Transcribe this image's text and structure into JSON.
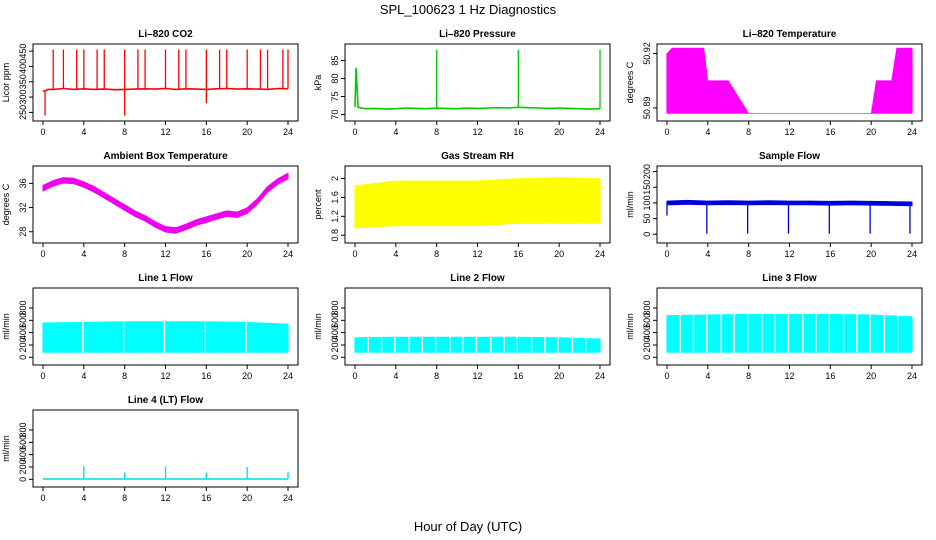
{
  "figure": {
    "title": "SPL_100623  1 Hz Diagnostics",
    "xlabel": "Hour of Day (UTC)"
  },
  "chart_data": [
    {
      "type": "line",
      "title": "Li–820 CO2",
      "ylabel": "Licor ppm",
      "color": "#ff0000",
      "xlim": [
        0,
        24
      ],
      "xticks": [
        0,
        4,
        8,
        12,
        16,
        20,
        24
      ],
      "ylim": [
        235,
        460
      ],
      "yticks": [
        250,
        300,
        350,
        400,
        450
      ],
      "series": [
        {
          "x": [
            0,
            0.2,
            0.5,
            1,
            2,
            3,
            4,
            5,
            6,
            7,
            8,
            9,
            10,
            11,
            12,
            13,
            14,
            15,
            16,
            17,
            18,
            19,
            20,
            21,
            22,
            23,
            24
          ],
          "y": [
            320,
            320,
            325,
            325,
            328,
            325,
            327,
            325,
            326,
            324,
            325,
            326,
            327,
            326,
            328,
            325,
            327,
            326,
            325,
            327,
            328,
            326,
            327,
            326,
            325,
            328,
            327
          ]
        }
      ],
      "spikes_up": [
        1,
        2,
        3.3,
        4,
        5.3,
        6,
        8,
        9.3,
        10,
        12,
        13.3,
        14,
        16,
        17.3,
        18,
        20,
        21.3,
        22,
        23.5,
        24
      ],
      "spikes_up_value": 455,
      "spikes_down": [
        0.2,
        8,
        16
      ],
      "spikes_down_value": [
        240,
        240,
        280
      ]
    },
    {
      "type": "line",
      "title": "Li–820 Pressure",
      "ylabel": "kPa",
      "color": "#00cc00",
      "xlim": [
        0,
        24
      ],
      "xticks": [
        0,
        4,
        8,
        12,
        16,
        20,
        24
      ],
      "ylim": [
        69.3,
        88.5
      ],
      "yticks": [
        70,
        75,
        80,
        85
      ],
      "series": [
        {
          "x": [
            0,
            0.1,
            0.3,
            1,
            2,
            3,
            4,
            5,
            6,
            7,
            8,
            9,
            10,
            11,
            12,
            13,
            14,
            15,
            16,
            17,
            18,
            19,
            20,
            21,
            22,
            23,
            24
          ],
          "y": [
            72,
            83,
            72,
            71.6,
            71.7,
            71.5,
            71.6,
            71.8,
            71.7,
            71.6,
            71.8,
            71.7,
            71.6,
            71.8,
            71.7,
            71.8,
            71.9,
            71.8,
            72,
            71.9,
            71.8,
            71.7,
            71.8,
            71.7,
            71.6,
            71.5,
            71.6
          ]
        }
      ],
      "spikes_up": [
        8,
        16,
        24
      ],
      "spikes_up_value": 88
    },
    {
      "type": "area",
      "title": "Li–820 Temperature",
      "ylabel": "degrees C",
      "color": "#ff00ff",
      "xlim": [
        0,
        24
      ],
      "xticks": [
        0,
        4,
        8,
        12,
        16,
        20,
        24
      ],
      "ylim": [
        50.885,
        50.923
      ],
      "yticks": [
        50.89,
        50.92
      ],
      "band_x": [
        0,
        0.5,
        1,
        2,
        3,
        3.6,
        4,
        5,
        6,
        8,
        12,
        16,
        20,
        20.5,
        21,
        22,
        22.5,
        23,
        24
      ],
      "band_high": [
        50.92,
        50.923,
        50.923,
        50.923,
        50.923,
        50.923,
        50.905,
        50.905,
        50.905,
        50.887,
        50.887,
        50.887,
        50.887,
        50.905,
        50.905,
        50.905,
        50.923,
        50.923,
        50.923
      ],
      "band_low": [
        50.887,
        50.887,
        50.887,
        50.887,
        50.887,
        50.887,
        50.887,
        50.887,
        50.887,
        50.887,
        50.887,
        50.887,
        50.887,
        50.887,
        50.887,
        50.887,
        50.887,
        50.887,
        50.887
      ]
    },
    {
      "type": "line",
      "title": "Ambient Box Temperature",
      "ylabel": "degrees C",
      "color": "#ee00ee",
      "xlim": [
        0,
        24
      ],
      "xticks": [
        0,
        4,
        8,
        12,
        16,
        20,
        24
      ],
      "ylim": [
        26.8,
        38.2
      ],
      "yticks": [
        28,
        32,
        36
      ],
      "band_width": 0.9,
      "series": [
        {
          "x": [
            0,
            1,
            2,
            3,
            4,
            5,
            6,
            7,
            8,
            9,
            10,
            11,
            12,
            13,
            14,
            15,
            16,
            17,
            18,
            19,
            20,
            21,
            22,
            23,
            24
          ],
          "y": [
            35.2,
            36,
            36.5,
            36.4,
            35.8,
            35,
            34,
            33,
            32,
            31,
            30.2,
            29.2,
            28.4,
            28.2,
            28.8,
            29.5,
            30,
            30.5,
            31,
            30.8,
            31.5,
            33,
            35,
            36.3,
            37.2
          ]
        }
      ]
    },
    {
      "type": "area",
      "title": "Gas Stream RH",
      "ylabel": "percent",
      "color": "#ffff00",
      "xlim": [
        0,
        24
      ],
      "xticks": [
        0,
        4,
        8,
        12,
        16,
        20,
        24
      ],
      "ylim": [
        0.72,
        2.18
      ],
      "yticks": [
        0.8,
        1.2,
        1.6,
        2.0
      ],
      "band_x": [
        0,
        4,
        8,
        12,
        16,
        20,
        24
      ],
      "band_high": [
        1.85,
        1.95,
        1.95,
        1.95,
        2.0,
        2.02,
        2.0
      ],
      "band_low": [
        0.95,
        1.0,
        1.0,
        1.0,
        1.05,
        1.05,
        1.05
      ]
    },
    {
      "type": "line",
      "title": "Sample Flow",
      "ylabel": "ml/min",
      "color": "#0000dd",
      "xlim": [
        0,
        24
      ],
      "xticks": [
        0,
        4,
        8,
        12,
        16,
        20,
        24
      ],
      "ylim": [
        -15,
        205
      ],
      "yticks": [
        0,
        50,
        100,
        150,
        200
      ],
      "series": [
        {
          "x": [
            0,
            2,
            4,
            6,
            8,
            10,
            12,
            14,
            16,
            18,
            20,
            22,
            24
          ],
          "y": [
            100,
            102,
            100,
            101,
            100,
            101,
            100,
            100,
            99,
            100,
            99,
            98,
            97
          ]
        }
      ],
      "band_width": 12,
      "spikes_down": [
        0,
        3.9,
        7.9,
        11.9,
        15.9,
        19.9,
        23.8
      ],
      "spikes_down_value": [
        60,
        2,
        2,
        2,
        2,
        2,
        2
      ]
    },
    {
      "type": "area",
      "title": "Line 1 Flow",
      "ylabel": "ml/min",
      "color": "#00ffff",
      "xlim": [
        0,
        24
      ],
      "xticks": [
        0,
        4,
        8,
        12,
        16,
        20,
        24
      ],
      "ylim": [
        -60,
        1060
      ],
      "yticks": [
        0,
        200,
        400,
        600,
        800
      ],
      "band_x": [
        0,
        4,
        8,
        12,
        16,
        20,
        24
      ],
      "band_high": [
        560,
        570,
        580,
        580,
        580,
        570,
        540
      ],
      "band_low": [
        80,
        80,
        80,
        80,
        80,
        80,
        80
      ],
      "gaps": [
        3.9,
        7.9,
        11.9,
        15.9,
        19.9
      ]
    },
    {
      "type": "area",
      "title": "Line 2 Flow",
      "ylabel": "ml/min",
      "color": "#00ffff",
      "xlim": [
        0,
        24
      ],
      "xticks": [
        0,
        4,
        8,
        12,
        16,
        20,
        24
      ],
      "ylim": [
        -60,
        1060
      ],
      "yticks": [
        0,
        200,
        400,
        600,
        800
      ],
      "band_x": [
        0,
        4,
        8,
        12,
        16,
        20,
        24
      ],
      "band_high": [
        320,
        330,
        330,
        330,
        330,
        320,
        300
      ],
      "band_low": [
        80,
        80,
        80,
        80,
        80,
        80,
        80
      ],
      "gaps": [
        1.3,
        2.6,
        3.9,
        5.3,
        6.6,
        7.9,
        9.3,
        10.6,
        11.9,
        13.3,
        14.6,
        15.9,
        17.3,
        18.6,
        19.9,
        21.3,
        22.6
      ]
    },
    {
      "type": "area",
      "title": "Line 3 Flow",
      "ylabel": "ml/min",
      "color": "#00ffff",
      "xlim": [
        0,
        24
      ],
      "xticks": [
        0,
        4,
        8,
        12,
        16,
        20,
        24
      ],
      "ylim": [
        -60,
        1060
      ],
      "yticks": [
        0,
        200,
        400,
        600,
        800
      ],
      "band_x": [
        0,
        4,
        8,
        12,
        16,
        20,
        24
      ],
      "band_high": [
        680,
        690,
        700,
        700,
        700,
        690,
        660
      ],
      "band_low": [
        80,
        80,
        80,
        80,
        80,
        80,
        80
      ],
      "gaps": [
        1.3,
        2.6,
        3.9,
        5.3,
        6.6,
        7.9,
        9.3,
        10.6,
        11.9,
        13.3,
        14.6,
        15.9,
        17.3,
        18.6,
        19.9,
        21.3,
        22.6
      ]
    },
    {
      "type": "line",
      "title": "Line 4 (LT) Flow",
      "ylabel": "ml/min",
      "color": "#00dddd",
      "xlim": [
        0,
        24
      ],
      "xticks": [
        0,
        4,
        8,
        12,
        16,
        20,
        24
      ],
      "ylim": [
        -60,
        1060
      ],
      "yticks": [
        0,
        200,
        400,
        600,
        800
      ],
      "series": [
        {
          "x": [
            0,
            4,
            8,
            12,
            16,
            20,
            24
          ],
          "y": [
            5,
            5,
            5,
            5,
            5,
            5,
            5
          ]
        }
      ],
      "spikes_up": [
        4,
        8,
        12,
        16,
        20,
        24
      ],
      "spikes_up_value": [
        210,
        110,
        210,
        110,
        200,
        120
      ]
    }
  ]
}
